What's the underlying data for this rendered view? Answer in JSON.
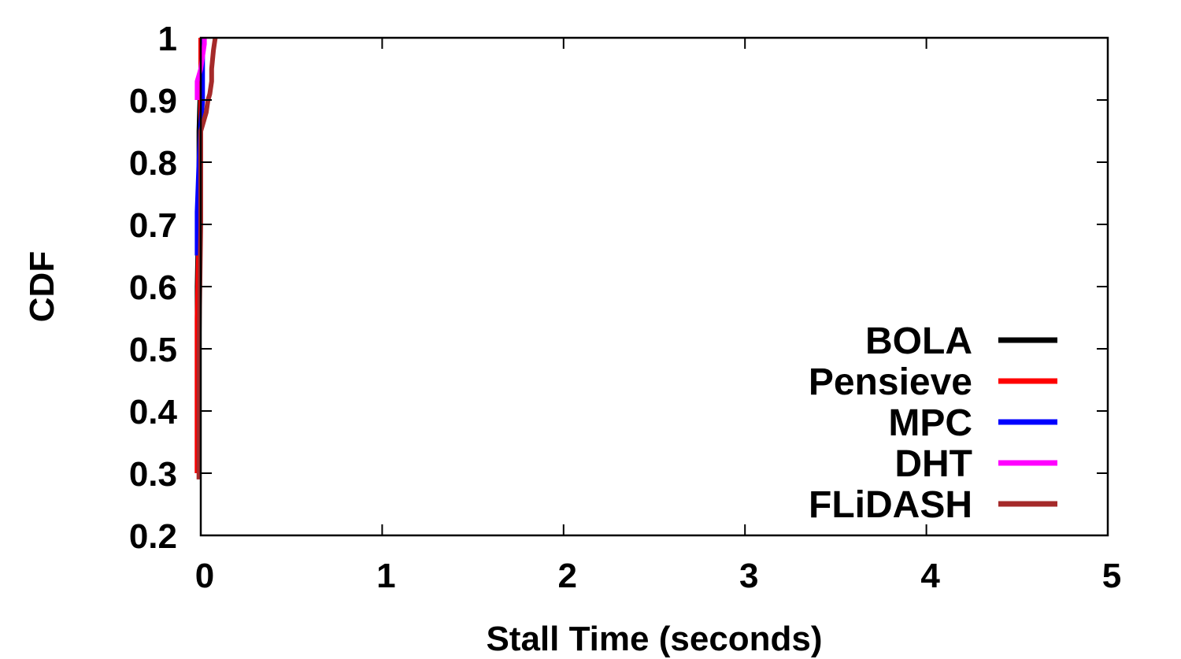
{
  "chart_data": {
    "type": "line",
    "xlabel": "Stall Time (seconds)",
    "ylabel": "CDF",
    "xlim": [
      0,
      5
    ],
    "ylim": [
      0.2,
      1
    ],
    "xticks": [
      "0",
      "1",
      "2",
      "3",
      "4",
      "5"
    ],
    "yticks": [
      "0.2",
      "0.3",
      "0.4",
      "0.5",
      "0.6",
      "0.7",
      "0.8",
      "0.9",
      "1"
    ],
    "grid": false,
    "legend_position": "bottom-right",
    "series": [
      {
        "name": "BOLA",
        "color": "#000000",
        "x": [
          -0.02,
          -0.02,
          -0.01,
          -0.01,
          0.0,
          0.0
        ],
        "y": [
          0.3,
          0.6,
          0.75,
          0.85,
          0.95,
          1.0
        ]
      },
      {
        "name": "Pensieve",
        "color": "#ff0000",
        "x": [
          -0.02,
          -0.02,
          -0.01,
          0.0,
          0.0
        ],
        "y": [
          0.3,
          0.55,
          0.7,
          0.85,
          1.0
        ]
      },
      {
        "name": "MPC",
        "color": "#0000ff",
        "x": [
          -0.02,
          -0.02,
          -0.01,
          0.0,
          0.01,
          0.01
        ],
        "y": [
          0.65,
          0.72,
          0.8,
          0.86,
          0.9,
          1.0
        ]
      },
      {
        "name": "DHT",
        "color": "#ff00ff",
        "x": [
          -0.02,
          -0.02,
          0.0,
          0.01,
          0.02,
          0.02
        ],
        "y": [
          0.9,
          0.93,
          0.95,
          0.97,
          0.99,
          1.0
        ]
      },
      {
        "name": "FLiDASH",
        "color": "#a52a2a",
        "x": [
          -0.01,
          -0.01,
          0.0,
          0.0,
          0.01,
          0.02,
          0.03,
          0.04,
          0.05,
          0.06,
          0.06,
          0.07,
          0.08
        ],
        "y": [
          0.29,
          0.5,
          0.7,
          0.85,
          0.86,
          0.87,
          0.88,
          0.9,
          0.91,
          0.93,
          0.95,
          0.98,
          1.0
        ]
      }
    ]
  }
}
